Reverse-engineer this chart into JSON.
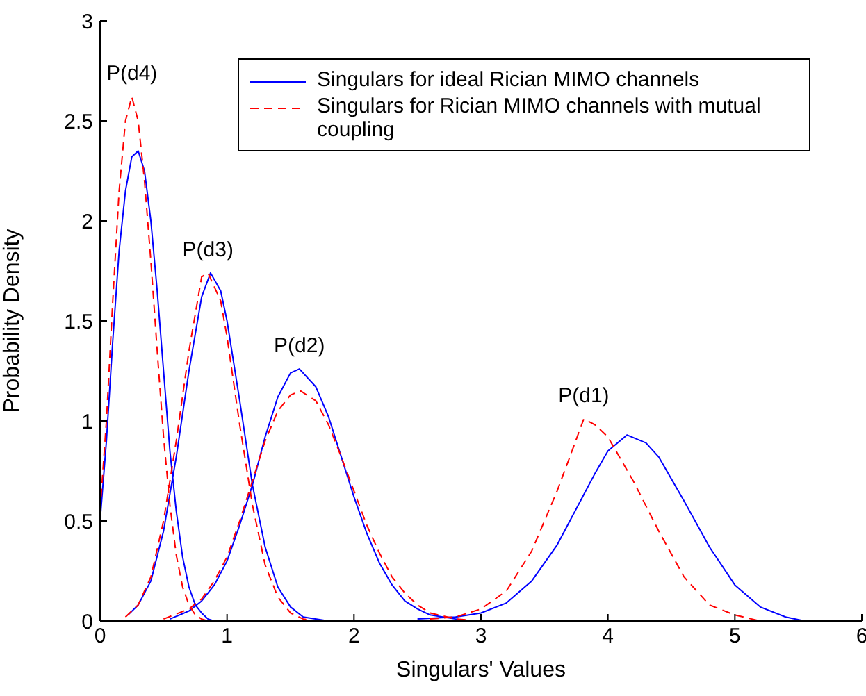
{
  "chart_data": {
    "type": "line",
    "xlabel": "Singulars' Values",
    "ylabel": "Probability Density",
    "xlim": [
      0,
      6
    ],
    "xticks": [
      0,
      1,
      2,
      3,
      4,
      5,
      6
    ],
    "ylim": [
      0,
      3
    ],
    "yticks": [
      0,
      0.5,
      1,
      1.5,
      2,
      2.5,
      3
    ],
    "legend": "top right",
    "marker": "none",
    "annotations": [
      {
        "text": "P(d4)",
        "x": 0.25,
        "y": 2.62
      },
      {
        "text": "P(d3)",
        "x": 0.85,
        "y": 1.74
      },
      {
        "text": "P(d2)",
        "x": 1.57,
        "y": 1.26
      },
      {
        "text": "P(d1)",
        "x": 3.81,
        "y": 1.01
      }
    ],
    "series": [
      {
        "name": "Singulars for ideal Rician MIMO channels",
        "color": "#0000ff",
        "line_style": "solid",
        "x": [
          0,
          0.05,
          0.1,
          0.15,
          0.2,
          0.25,
          0.3,
          0.35,
          0.4,
          0.45,
          0.5,
          0.55,
          0.6,
          0.65,
          0.7,
          0.75,
          0.8,
          0.85,
          0.9,
          null,
          0.22,
          0.3,
          0.4,
          0.5,
          0.6,
          0.7,
          0.8,
          0.87,
          0.95,
          1.0,
          1.1,
          1.2,
          1.3,
          1.4,
          1.5,
          1.6,
          1.8,
          null,
          0.55,
          0.7,
          0.8,
          0.9,
          1.0,
          1.1,
          1.2,
          1.3,
          1.4,
          1.5,
          1.57,
          1.7,
          1.8,
          1.9,
          2.0,
          2.1,
          2.2,
          2.3,
          2.4,
          2.5,
          2.6,
          2.8,
          2.9,
          null,
          2.5,
          2.8,
          3.0,
          3.2,
          3.4,
          3.6,
          3.8,
          3.9,
          4.0,
          4.15,
          4.3,
          4.4,
          4.6,
          4.8,
          5.0,
          5.2,
          5.4,
          5.55
        ],
        "values": [
          0.5,
          0.9,
          1.4,
          1.85,
          2.15,
          2.32,
          2.35,
          2.25,
          2.0,
          1.65,
          1.25,
          0.85,
          0.55,
          0.32,
          0.17,
          0.08,
          0.04,
          0.01,
          0,
          null,
          0.03,
          0.08,
          0.2,
          0.45,
          0.82,
          1.25,
          1.62,
          1.74,
          1.65,
          1.5,
          1.1,
          0.68,
          0.37,
          0.17,
          0.07,
          0.02,
          0,
          null,
          0.01,
          0.05,
          0.1,
          0.18,
          0.3,
          0.48,
          0.68,
          0.92,
          1.12,
          1.24,
          1.26,
          1.17,
          1.02,
          0.82,
          0.62,
          0.44,
          0.29,
          0.18,
          0.1,
          0.06,
          0.03,
          0.01,
          0,
          null,
          0.01,
          0.02,
          0.04,
          0.09,
          0.2,
          0.38,
          0.62,
          0.74,
          0.85,
          0.93,
          0.89,
          0.82,
          0.6,
          0.37,
          0.18,
          0.07,
          0.02,
          0
        ]
      },
      {
        "name": "Singulars for Rician MIMO channels with mutual coupling",
        "color": "#ff0000",
        "line_style": "dashed",
        "x": [
          0,
          0.05,
          0.1,
          0.15,
          0.2,
          0.25,
          0.3,
          0.35,
          0.4,
          0.45,
          0.5,
          0.55,
          0.6,
          0.65,
          0.7,
          0.75,
          0.8,
          0.85,
          null,
          0.2,
          0.3,
          0.4,
          0.5,
          0.6,
          0.7,
          0.8,
          0.85,
          0.95,
          1.0,
          1.1,
          1.2,
          1.3,
          1.4,
          1.5,
          1.6,
          1.7,
          null,
          0.5,
          0.7,
          0.8,
          0.9,
          1.0,
          1.1,
          1.2,
          1.3,
          1.4,
          1.5,
          1.58,
          1.7,
          1.8,
          1.9,
          2.0,
          2.1,
          2.2,
          2.3,
          2.4,
          2.5,
          2.6,
          2.8,
          3.0,
          null,
          2.6,
          2.8,
          3.0,
          3.2,
          3.4,
          3.6,
          3.7,
          3.81,
          3.9,
          4.0,
          4.2,
          4.4,
          4.6,
          4.8,
          5.0,
          5.2
        ],
        "values": [
          0.55,
          1.0,
          1.6,
          2.15,
          2.5,
          2.62,
          2.5,
          2.2,
          1.8,
          1.35,
          0.92,
          0.58,
          0.33,
          0.17,
          0.08,
          0.03,
          0.01,
          0,
          null,
          0.02,
          0.08,
          0.22,
          0.5,
          0.9,
          1.35,
          1.72,
          1.74,
          1.6,
          1.42,
          0.98,
          0.58,
          0.28,
          0.12,
          0.04,
          0.01,
          0,
          null,
          0.01,
          0.06,
          0.11,
          0.2,
          0.32,
          0.5,
          0.7,
          0.9,
          1.05,
          1.13,
          1.15,
          1.1,
          0.98,
          0.82,
          0.65,
          0.48,
          0.34,
          0.22,
          0.14,
          0.08,
          0.04,
          0.01,
          0,
          null,
          0.01,
          0.02,
          0.06,
          0.15,
          0.35,
          0.65,
          0.82,
          1.01,
          0.98,
          0.92,
          0.7,
          0.45,
          0.22,
          0.08,
          0.03,
          0
        ]
      }
    ]
  }
}
